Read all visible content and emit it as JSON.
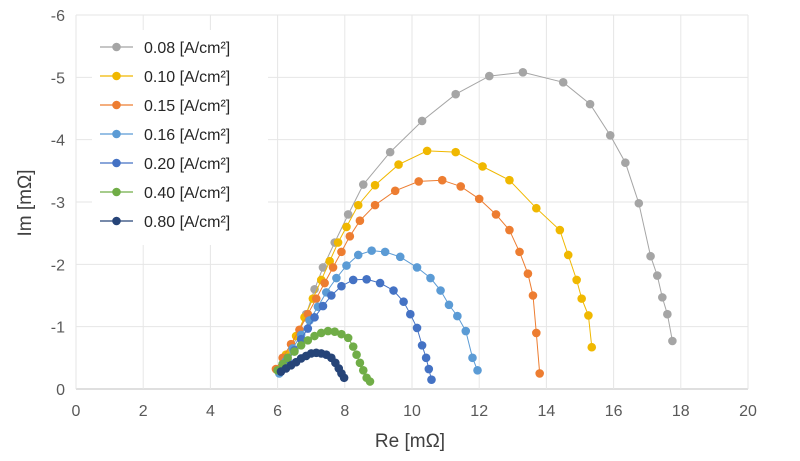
{
  "chart_data": {
    "type": "scatter",
    "title": "",
    "xlabel": "Re [mΩ]",
    "ylabel": "Im [mΩ]",
    "xlim": [
      0,
      20
    ],
    "ylim": [
      0,
      -6
    ],
    "xticks": [
      0,
      2,
      4,
      6,
      8,
      10,
      12,
      14,
      16,
      18,
      20
    ],
    "yticks": [
      0,
      -1,
      -2,
      -3,
      -4,
      -5,
      -6
    ],
    "xtick_labels": [
      "0",
      "2",
      "4",
      "6",
      "8",
      "10",
      "12",
      "14",
      "16",
      "18",
      "20"
    ],
    "ytick_labels": [
      "0",
      "-1",
      "-2",
      "-3",
      "-4",
      "-5",
      "-6"
    ],
    "grid": true,
    "legend_position": "top-left",
    "series": [
      {
        "name": "0.08 [A/cm²]",
        "color": "#a5a5a5",
        "x": [
          6.05,
          6.3,
          6.6,
          6.85,
          7.1,
          7.35,
          7.7,
          8.1,
          8.55,
          9.35,
          10.3,
          11.3,
          12.3,
          13.3,
          14.5,
          15.3,
          15.9,
          16.35,
          16.75,
          17.1,
          17.3,
          17.45,
          17.6,
          17.75
        ],
        "y": [
          -0.3,
          -0.55,
          -0.85,
          -1.2,
          -1.6,
          -1.95,
          -2.35,
          -2.8,
          -3.28,
          -3.8,
          -4.3,
          -4.73,
          -5.02,
          -5.08,
          -4.92,
          -4.57,
          -4.07,
          -3.63,
          -2.98,
          -2.13,
          -1.82,
          -1.47,
          -1.2,
          -0.77
        ]
      },
      {
        "name": "0.10 [A/cm²]",
        "color": "#f0b800",
        "x": [
          6.0,
          6.25,
          6.55,
          6.8,
          7.05,
          7.3,
          7.55,
          7.8,
          8.05,
          8.4,
          8.9,
          9.6,
          10.45,
          11.3,
          12.1,
          12.9,
          13.7,
          14.4,
          14.65,
          14.9,
          15.05,
          15.25,
          15.35
        ],
        "y": [
          -0.3,
          -0.55,
          -0.85,
          -1.15,
          -1.45,
          -1.75,
          -2.05,
          -2.35,
          -2.6,
          -2.95,
          -3.27,
          -3.6,
          -3.82,
          -3.8,
          -3.57,
          -3.35,
          -2.9,
          -2.55,
          -2.15,
          -1.75,
          -1.45,
          -1.18,
          -0.67
        ]
      },
      {
        "name": "0.15 [A/cm²]",
        "color": "#ed7d31",
        "x": [
          5.95,
          6.15,
          6.4,
          6.65,
          6.9,
          7.15,
          7.4,
          7.65,
          7.9,
          8.15,
          8.45,
          8.9,
          9.5,
          10.2,
          10.9,
          11.45,
          12.0,
          12.5,
          12.9,
          13.2,
          13.45,
          13.6,
          13.7,
          13.8
        ],
        "y": [
          -0.32,
          -0.5,
          -0.72,
          -0.95,
          -1.2,
          -1.45,
          -1.7,
          -1.95,
          -2.2,
          -2.45,
          -2.7,
          -2.95,
          -3.18,
          -3.33,
          -3.35,
          -3.25,
          -3.05,
          -2.8,
          -2.55,
          -2.2,
          -1.85,
          -1.5,
          -0.9,
          -0.25
        ]
      },
      {
        "name": "0.16 [A/cm²]",
        "color": "#5b9bd5",
        "x": [
          6.05,
          6.25,
          6.45,
          6.7,
          6.95,
          7.2,
          7.45,
          7.75,
          8.05,
          8.4,
          8.8,
          9.2,
          9.65,
          10.15,
          10.55,
          10.85,
          11.1,
          11.35,
          11.6,
          11.8,
          11.95
        ],
        "y": [
          -0.25,
          -0.45,
          -0.65,
          -0.87,
          -1.1,
          -1.32,
          -1.55,
          -1.78,
          -1.98,
          -2.15,
          -2.22,
          -2.2,
          -2.12,
          -1.95,
          -1.78,
          -1.58,
          -1.35,
          -1.17,
          -0.93,
          -0.5,
          -0.3
        ]
      },
      {
        "name": "0.20 [A/cm²]",
        "color": "#4472c4",
        "x": [
          6.1,
          6.3,
          6.5,
          6.7,
          6.9,
          7.1,
          7.35,
          7.6,
          7.9,
          8.25,
          8.65,
          9.05,
          9.45,
          9.75,
          9.95,
          10.15,
          10.3,
          10.42,
          10.5,
          10.58
        ],
        "y": [
          -0.28,
          -0.45,
          -0.62,
          -0.8,
          -0.97,
          -1.15,
          -1.33,
          -1.5,
          -1.65,
          -1.75,
          -1.76,
          -1.7,
          -1.58,
          -1.4,
          -1.2,
          -0.98,
          -0.7,
          -0.5,
          -0.32,
          -0.15
        ]
      },
      {
        "name": "0.40 [A/cm²]",
        "color": "#70ad47",
        "x": [
          6.0,
          6.15,
          6.3,
          6.5,
          6.7,
          6.9,
          7.1,
          7.3,
          7.5,
          7.7,
          7.9,
          8.1,
          8.25,
          8.35,
          8.45,
          8.55,
          8.65,
          8.75
        ],
        "y": [
          -0.3,
          -0.4,
          -0.5,
          -0.6,
          -0.7,
          -0.78,
          -0.85,
          -0.9,
          -0.93,
          -0.92,
          -0.88,
          -0.82,
          -0.68,
          -0.55,
          -0.42,
          -0.3,
          -0.18,
          -0.12
        ]
      },
      {
        "name": "0.80 [A/cm²]",
        "color": "#264478",
        "x": [
          6.1,
          6.25,
          6.4,
          6.55,
          6.7,
          6.85,
          7.0,
          7.15,
          7.3,
          7.45,
          7.6,
          7.72,
          7.82,
          7.9,
          7.98
        ],
        "y": [
          -0.28,
          -0.33,
          -0.38,
          -0.43,
          -0.49,
          -0.53,
          -0.57,
          -0.58,
          -0.57,
          -0.55,
          -0.5,
          -0.42,
          -0.33,
          -0.25,
          -0.18
        ]
      }
    ]
  }
}
